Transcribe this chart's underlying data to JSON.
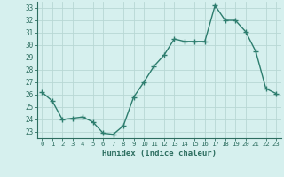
{
  "x": [
    0,
    1,
    2,
    3,
    4,
    5,
    6,
    7,
    8,
    9,
    10,
    11,
    12,
    13,
    14,
    15,
    16,
    17,
    18,
    19,
    20,
    21,
    22,
    23
  ],
  "y": [
    26.2,
    25.5,
    24.0,
    24.1,
    24.2,
    23.8,
    22.9,
    22.8,
    23.5,
    25.8,
    27.0,
    28.3,
    29.2,
    30.5,
    30.3,
    30.3,
    30.3,
    33.2,
    32.0,
    32.0,
    31.1,
    29.5,
    26.5,
    26.1
  ],
  "line_color": "#2d7d6e",
  "marker": "+",
  "marker_size": 4,
  "bg_color": "#d6f0ee",
  "grid_color": "#b8d8d4",
  "xlabel": "Humidex (Indice chaleur)",
  "xlim": [
    -0.5,
    23.5
  ],
  "ylim": [
    22.5,
    33.5
  ],
  "yticks": [
    23,
    24,
    25,
    26,
    27,
    28,
    29,
    30,
    31,
    32,
    33
  ],
  "xticks": [
    0,
    1,
    2,
    3,
    4,
    5,
    6,
    7,
    8,
    9,
    10,
    11,
    12,
    13,
    14,
    15,
    16,
    17,
    18,
    19,
    20,
    21,
    22,
    23
  ],
  "font_color": "#2d6e60",
  "linewidth": 1.0,
  "marker_color": "#2d7d6e"
}
